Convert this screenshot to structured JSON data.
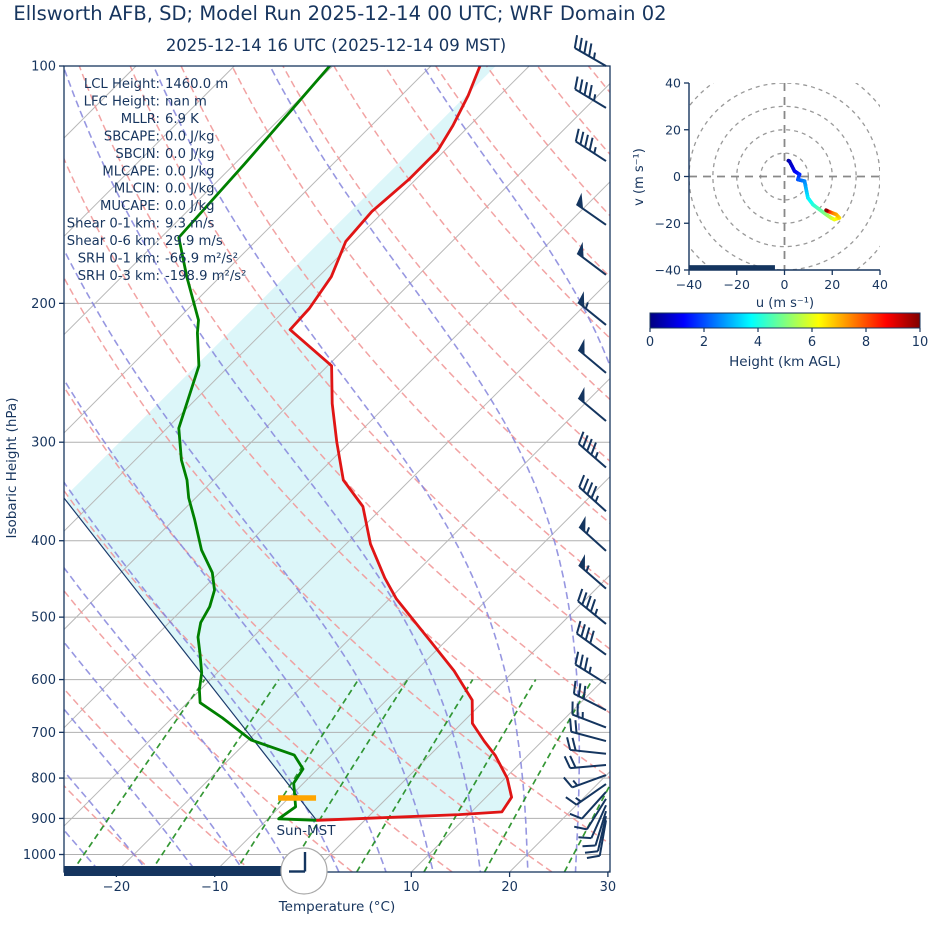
{
  "title": "Ellsworth AFB, SD; Model Run 2025-12-14 00 UTC; WRF Domain 02",
  "subtitle": "2025-12-14 16 UTC  (2025-12-14 09 MST)",
  "skewt": {
    "xlabel": "Temperature (°C)",
    "ylabel": "Isobaric Height (hPa)",
    "sun_label": "Sun-MST",
    "pressure_ticks": [
      100,
      200,
      300,
      400,
      500,
      600,
      700,
      800,
      900,
      1000
    ],
    "temp_ticks": [
      -20,
      -10,
      10,
      20,
      30
    ],
    "annotations": [
      {
        "label": "LCL Height",
        "value": "1460.0 m"
      },
      {
        "label": "LFC Height",
        "value": "nan m"
      },
      {
        "label": "MLLR",
        "value": "6.9 K"
      },
      {
        "label": "SBCAPE",
        "value": "0.0 J/kg"
      },
      {
        "label": "SBCIN",
        "value": "0.0 J/kg"
      },
      {
        "label": "MLCAPE",
        "value": "0.0 J/kg"
      },
      {
        "label": "MLCIN",
        "value": "0.0 J/kg"
      },
      {
        "label": "MUCAPE",
        "value": "0.0 J/kg"
      },
      {
        "label": "Shear 0-1 km",
        "value": "9.3 m/s"
      },
      {
        "label": "Shear 0-6 km",
        "value": "29.9 m/s"
      },
      {
        "label": "SRH 0-1 km",
        "value": "-66.9 m²/s²"
      },
      {
        "label": "SRH 0-3 km",
        "value": "-198.9 m²/s²"
      }
    ],
    "colors": {
      "temperature": "#e01515",
      "dewpoint": "#008000",
      "parcel": "#1b3a6b",
      "fill": "rgba(178,235,241,0.45)",
      "isotherm": "#b8b8b8",
      "dry_adiabat": "#f19999",
      "moist_adiabat": "#8585dc",
      "mixing_ratio": "#1e8c1e",
      "barb": "#14355f",
      "lcl_marker": "#ffa500",
      "axis": "#17355e"
    }
  },
  "hodograph": {
    "xlabel": "u (m s⁻¹)",
    "ylabel": "v (m s⁻¹)",
    "ticks": [
      -40,
      -20,
      0,
      20,
      40
    ],
    "rings": [
      10,
      20,
      30,
      40,
      50
    ]
  },
  "colorbar": {
    "label": "Height (km AGL)",
    "ticks": [
      0,
      2,
      4,
      6,
      8,
      10
    ],
    "min": 0,
    "max": 10
  },
  "chart_data": {
    "type": "skewt-sounding",
    "pressure_range_hPa": [
      100,
      1052
    ],
    "temperature_range_C": [
      -25.5,
      30.2
    ],
    "temperature_profile": [
      [
        905,
        -4.8
      ],
      [
        897,
        2.5
      ],
      [
        890,
        9.0
      ],
      [
        883,
        13.1
      ],
      [
        846,
        12.6
      ],
      [
        800,
        10.2
      ],
      [
        749,
        6.7
      ],
      [
        718,
        4.1
      ],
      [
        682,
        1.1
      ],
      [
        637,
        -1.3
      ],
      [
        585,
        -6.1
      ],
      [
        535,
        -11.7
      ],
      [
        474,
        -19.3
      ],
      [
        446,
        -22.6
      ],
      [
        404,
        -27.5
      ],
      [
        362,
        -32.1
      ],
      [
        335,
        -36.8
      ],
      [
        300,
        -41.3
      ],
      [
        268,
        -45.7
      ],
      [
        240,
        -49.6
      ],
      [
        216,
        -57.5
      ],
      [
        203,
        -57.7
      ],
      [
        185,
        -58.7
      ],
      [
        167,
        -60.8
      ],
      [
        153,
        -61.2
      ],
      [
        139,
        -60.7
      ],
      [
        128,
        -60.7
      ],
      [
        119,
        -61.7
      ],
      [
        109,
        -63.2
      ],
      [
        100,
        -65.0
      ]
    ],
    "dewpoint_profile": [
      [
        905,
        -4.9
      ],
      [
        901,
        -8.9
      ],
      [
        870,
        -8.4
      ],
      [
        812,
        -11.0
      ],
      [
        779,
        -11.5
      ],
      [
        748,
        -13.8
      ],
      [
        716,
        -19.7
      ],
      [
        671,
        -24.9
      ],
      [
        642,
        -28.7
      ],
      [
        618,
        -30.1
      ],
      [
        588,
        -31.6
      ],
      [
        555,
        -33.8
      ],
      [
        530,
        -35.6
      ],
      [
        508,
        -36.8
      ],
      [
        485,
        -37.5
      ],
      [
        462,
        -38.7
      ],
      [
        439,
        -40.7
      ],
      [
        411,
        -44.1
      ],
      [
        376,
        -47.9
      ],
      [
        353,
        -50.7
      ],
      [
        335,
        -52.7
      ],
      [
        316,
        -55.3
      ],
      [
        288,
        -58.8
      ],
      [
        240,
        -63.1
      ],
      [
        218,
        -66.6
      ],
      [
        210,
        -67.8
      ],
      [
        185,
        -73.4
      ],
      [
        165,
        -78.2
      ],
      [
        133,
        -79.0
      ],
      [
        114,
        -79.7
      ],
      [
        100,
        -80.3
      ]
    ],
    "parcel_path": [
      [
        905,
        -4.9
      ],
      [
        353,
        -63.4
      ]
    ],
    "lcl_pressure_hPa": 848,
    "surface_pressure_hPa": 905,
    "wind_barbs_p_kt_dir": [
      [
        100,
        45,
        300
      ],
      [
        113,
        45,
        301
      ],
      [
        132,
        45,
        303
      ],
      [
        159,
        50,
        305
      ],
      [
        184,
        50,
        307
      ],
      [
        213,
        55,
        309
      ],
      [
        245,
        50,
        310
      ],
      [
        282,
        48,
        310
      ],
      [
        323,
        47,
        311
      ],
      [
        367,
        47,
        312
      ],
      [
        412,
        55,
        312
      ],
      [
        460,
        53,
        311
      ],
      [
        510,
        45,
        309
      ],
      [
        558,
        40,
        306
      ],
      [
        607,
        35,
        302
      ],
      [
        656,
        30,
        297
      ],
      [
        690,
        25,
        291
      ],
      [
        718,
        22,
        285
      ],
      [
        745,
        20,
        276
      ],
      [
        770,
        18,
        265
      ],
      [
        793,
        15,
        250
      ],
      [
        814,
        14,
        235
      ],
      [
        833,
        12,
        222
      ],
      [
        850,
        12,
        212
      ],
      [
        866,
        11,
        204
      ],
      [
        881,
        11,
        197
      ],
      [
        894,
        10,
        193
      ],
      [
        905,
        10,
        190
      ]
    ],
    "hodograph_h_u_v": [
      [
        0,
        1.6,
        6.8
      ],
      [
        0.5,
        2.1,
        6.5
      ],
      [
        1,
        4.2,
        2.3
      ],
      [
        1.5,
        6.3,
        0.9
      ],
      [
        2,
        5.6,
        -1.3
      ],
      [
        2.5,
        8.4,
        -2.0
      ],
      [
        3,
        9.1,
        -5.6
      ],
      [
        3.5,
        9.8,
        -9.1
      ],
      [
        4,
        11.9,
        -12.0
      ],
      [
        4.5,
        14.6,
        -14.1
      ],
      [
        5,
        17.4,
        -16.2
      ],
      [
        5.5,
        19.5,
        -17.7
      ],
      [
        6,
        20.9,
        -18.4
      ],
      [
        6.5,
        23.0,
        -17.7
      ],
      [
        7,
        21.6,
        -16.2
      ],
      [
        7.5,
        19.5,
        -15.4
      ],
      [
        8.5,
        18.1,
        -14.8
      ],
      [
        10,
        17.4,
        -14.4
      ]
    ],
    "indices": {
      "lcl_height_m": 1460.0,
      "lfc_height_m": null,
      "mllr_K": 6.9,
      "sbcape_Jkg": 0.0,
      "sbcin_Jkg": 0.0,
      "mlcape_Jkg": 0.0,
      "mlcin_Jkg": 0.0,
      "mucape_Jkg": 0.0,
      "shear_0_1km_ms": 9.3,
      "shear_0_6km_ms": 29.9,
      "srh_0_1km_m2s2": -66.9,
      "srh_0_3km_m2s2": -198.9
    },
    "grid": {
      "isotherm_step_C": 10,
      "dry_adiabats_C": [
        -30,
        180,
        10
      ],
      "moist_adiabats_C": [
        -40,
        40,
        5
      ],
      "mixing_ratio_gkg": [
        0.5,
        1,
        2,
        3,
        5,
        8,
        12,
        20
      ],
      "mixing_ratio_top_hPa": 600
    }
  }
}
